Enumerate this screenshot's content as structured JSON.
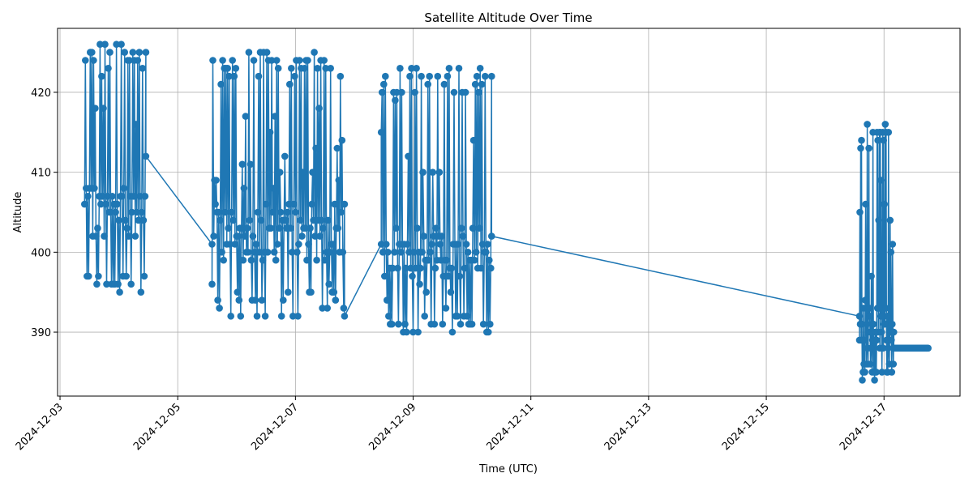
{
  "chart_data": {
    "type": "line",
    "title": "Satellite Altitude Over Time",
    "xlabel": "Time (UTC)",
    "ylabel": "Altitude",
    "x_type": "date",
    "xlim": [
      "2024-12-02 23:00",
      "2024-12-18 07:00"
    ],
    "ylim": [
      382,
      428
    ],
    "x_ticks": [
      "2024-12-03",
      "2024-12-05",
      "2024-12-07",
      "2024-12-09",
      "2024-12-11",
      "2024-12-13",
      "2024-12-15",
      "2024-12-17"
    ],
    "y_ticks": [
      390,
      400,
      410,
      420
    ],
    "grid": true,
    "legend": "none",
    "series_color": "#1f77b4",
    "segments": [
      {
        "start": "2024-12-03 10:00",
        "end": "2024-12-04 11:00",
        "interval_min": 20,
        "min": 395,
        "max": 426,
        "core": [
          402,
          408
        ]
      },
      {
        "start": "2024-12-05 14:00",
        "end": "2024-12-07 20:00",
        "interval_min": 20,
        "min": 392,
        "max": 425,
        "core": [
          399,
          406
        ]
      },
      {
        "start": "2024-12-08 11:00",
        "end": "2024-12-10 08:00",
        "interval_min": 20,
        "min": 390,
        "max": 423,
        "core": [
          397,
          403
        ]
      },
      {
        "start": "2024-12-16 14:00",
        "end": "2024-12-17 04:00",
        "interval_min": 10,
        "min": 384,
        "max": 416,
        "core": [
          388,
          394
        ]
      },
      {
        "start": "2024-12-17 04:00",
        "end": "2024-12-17 18:00",
        "interval_min": 20,
        "min": 388,
        "max": 388,
        "core": [
          388,
          388
        ]
      }
    ],
    "bridges": [
      {
        "x": "2024-12-04 11:00",
        "y": 412
      },
      {
        "x": "2024-12-05 14:00",
        "y": 396
      },
      {
        "x": "2024-12-07 20:00",
        "y": 392
      },
      {
        "x": "2024-12-08 11:00",
        "y": 415
      },
      {
        "x": "2024-12-10 08:00",
        "y": 402
      },
      {
        "x": "2024-12-16 14:00",
        "y": 389
      }
    ]
  }
}
